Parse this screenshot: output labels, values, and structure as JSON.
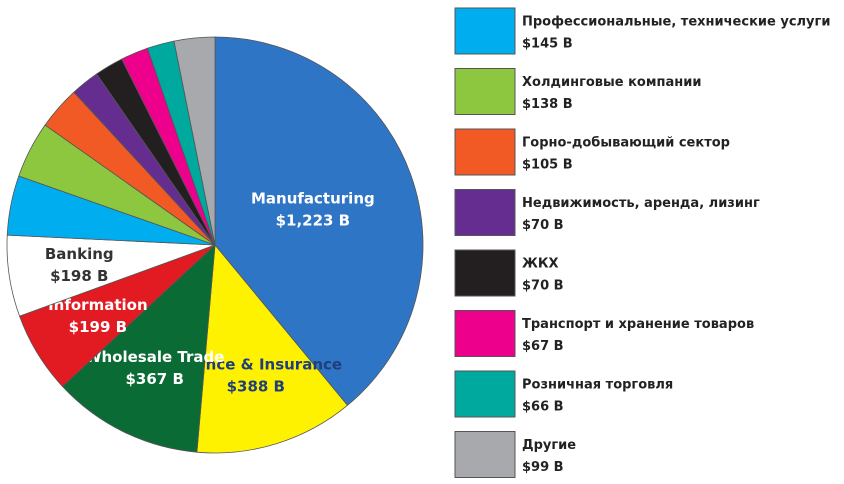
{
  "chart_data": {
    "type": "pie",
    "categories": [
      "Manufacturing",
      "Finance & Insurance",
      "Wholesale Trade",
      "Information",
      "Banking",
      "Профессиональные, технические услуги",
      "Холдинговые компании",
      "Горно-добывающий сектор",
      "Недвижимость, аренда, лизинг",
      "ЖКХ",
      "Транспорт и хранение товаров",
      "Розничная торговля",
      "Другие"
    ],
    "values": [
      1223,
      388,
      367,
      199,
      198,
      145,
      138,
      105,
      70,
      70,
      67,
      66,
      99
    ],
    "value_labels": [
      "$1,223 B",
      "$388 B",
      "$367 B",
      "$199 B",
      "$198 B",
      "$145 B",
      "$138 B",
      "$105 B",
      "$70 B",
      "$70 B",
      "$67 B",
      "$66 B",
      "$99 B"
    ],
    "colors": [
      "#2f75c6",
      "#fff200",
      "#0b6b35",
      "#e21b23",
      "#ffffff",
      "#00aeef",
      "#8dc63f",
      "#f15a24",
      "#662d91",
      "#231f20",
      "#ec008c",
      "#00a99d",
      "#a7a9ac"
    ]
  }
}
